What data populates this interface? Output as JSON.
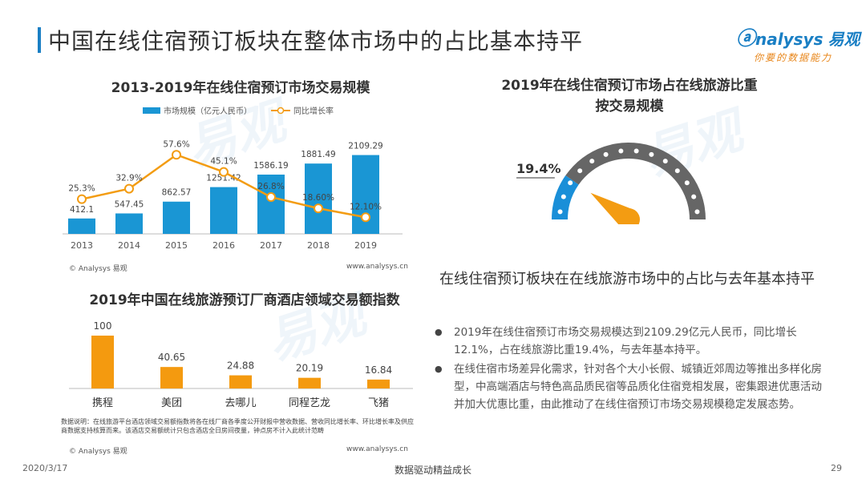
{
  "page": {
    "title": "中国在线住宿预订板块在整体市场中的占比基本持平",
    "logo_brand": "nalysys",
    "logo_brand_cn": "易观",
    "logo_slogan": "你要的数据能力",
    "footer_date": "2020/3/17",
    "footer_center": "数据驱动精益成长",
    "page_number": "29",
    "watermark_text": "易观"
  },
  "colors": {
    "accent_blue": "#1a96d4",
    "accent_orange": "#f39c12",
    "bar_orange": "#f49a0f",
    "gauge_grey": "#666666",
    "gauge_blue": "#1a8fd8"
  },
  "chart_data": [
    {
      "type": "bar",
      "title": "2013-2019年在线住宿预订市场交易规模",
      "categories": [
        "2013",
        "2014",
        "2015",
        "2016",
        "2017",
        "2018",
        "2019"
      ],
      "series": [
        {
          "name": "市场规模（亿元人民币）",
          "type": "bar",
          "values": [
            412.1,
            547.45,
            862.57,
            1251.42,
            1586.19,
            1881.49,
            2109.29
          ],
          "labels": [
            "412.1",
            "547.45",
            "862.57",
            "1251.42",
            "1586.19",
            "1881.49",
            "2109.29"
          ]
        },
        {
          "name": "同比增长率",
          "type": "line",
          "values": [
            25.3,
            32.9,
            57.6,
            45.1,
            26.8,
            18.6,
            12.1
          ],
          "labels": [
            "25.3%",
            "32.9%",
            "57.6%",
            "45.1%",
            "26.8%",
            "18.60%",
            "12.10%"
          ]
        }
      ],
      "source_left": "© Analysys 易观",
      "source_right": "www.analysys.cn",
      "legend_position": "top"
    },
    {
      "type": "bar",
      "title": "2019年中国在线旅游预订厂商酒店领域交易额指数",
      "categories": [
        "携程",
        "美团",
        "去哪儿",
        "同程艺龙",
        "飞猪"
      ],
      "values": [
        100,
        40.65,
        24.88,
        20.19,
        16.84
      ],
      "labels": [
        "100",
        "40.65",
        "24.88",
        "20.19",
        "16.84"
      ],
      "note": "数据说明：在线旅游平台酒店领域交易额指数将各在线厂商各季度公开财报中营收数据、营收同比增长率、环比增长率及供应商数据支持核算而来。该酒店交易额统计只包含酒店全日房间夜量，钟点房不计入此统计范畴",
      "source_left": "© Analysys 易观",
      "source_right": "www.analysys.cn"
    },
    {
      "type": "pie",
      "title": "2019年在线住宿预订市场占在线旅游比重",
      "subtitle": "按交易规模",
      "value_percent": 19.4,
      "value_label": "19.4%"
    }
  ],
  "summary": {
    "subtitle": "在线住宿预订板块在在线旅游市场中的占比与去年基本持平",
    "bullets": [
      "2019年在线住宿预订市场交易规模达到2109.29亿元人民币，同比增长12.1%，占在线旅游比重19.4%，与去年基本持平。",
      "在线住宿市场差异化需求，针对各个大小长假、城镇近郊周边等推出多样化房型，中高端酒店与特色高品质民宿等品质化住宿竞相发展，密集跟进优惠活动并加大优惠比重，由此推动了在线住宿预订市场交易规模稳定发展态势。"
    ]
  }
}
